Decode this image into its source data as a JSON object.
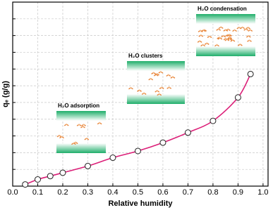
{
  "chart_data": {
    "type": "line",
    "x_label": "Relative humidity",
    "y_label": "qₑ (g/g)",
    "x": [
      0.05,
      0.1,
      0.15,
      0.2,
      0.3,
      0.4,
      0.5,
      0.6,
      0.7,
      0.8,
      0.9,
      0.95
    ],
    "series": [
      {
        "color": "#dc1f78",
        "values": [
          0.1,
          0.4,
          0.6,
          0.8,
          1.2,
          1.7,
          2.1,
          2.6,
          3.2,
          3.9,
          5.3,
          6.7
        ]
      }
    ],
    "xlim": [
      0,
      1.02
    ],
    "ylim": [
      0,
      11
    ],
    "xticks": [
      {
        "value": 0,
        "label": "0.0"
      },
      0.1,
      0.2,
      0.3,
      0.4,
      0.5,
      0.6,
      0.7,
      0.8,
      0.9,
      {
        "value": 1,
        "label": "1.0"
      }
    ],
    "yticks": [
      1,
      2,
      3,
      4,
      5,
      6,
      7,
      8,
      9,
      10
    ],
    "grid": true,
    "annotations": [
      "H₂O adsorption",
      "H₂O clusters",
      "H₂O condensation"
    ]
  }
}
